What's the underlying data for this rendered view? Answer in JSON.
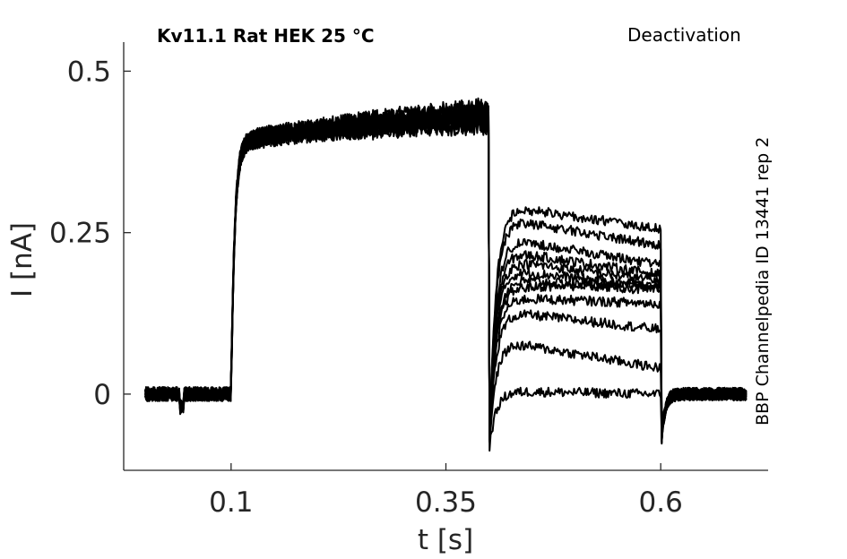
{
  "chart_data": {
    "type": "line",
    "title": "Kv11.1  Rat  HEK  25 °C",
    "subtitle": "Deactivation",
    "side_label": "BBP Channelpedia ID 13441 rep 2",
    "xlabel": "t [s]",
    "ylabel": "I [nA]",
    "xlim": [
      -0.025,
      0.725
    ],
    "ylim": [
      -0.118,
      0.545
    ],
    "xticks": [
      0.1,
      0.35,
      0.6
    ],
    "xtick_labels": [
      "0.1",
      "0.35",
      "0.6"
    ],
    "yticks": [
      0,
      0.25,
      0.5
    ],
    "ytick_labels": [
      "0",
      "0.25",
      "0.5"
    ],
    "grid": false,
    "line_color": "#000000",
    "protocol": {
      "pre_start": 0.0,
      "step_start": 0.1,
      "tail_start": 0.4,
      "tail_end": 0.6,
      "end": 0.7,
      "pre_level": 0.0,
      "activation_level_start": 0.38,
      "activation_level_end": 0.43,
      "post_level": 0.0,
      "tail_dip": -0.09,
      "end_dip": -0.09
    },
    "series": [
      {
        "tail_start": 0.295,
        "tail_end": 0.255
      },
      {
        "tail_start": 0.275,
        "tail_end": 0.23
      },
      {
        "tail_start": 0.245,
        "tail_end": 0.2
      },
      {
        "tail_start": 0.225,
        "tail_end": 0.185
      },
      {
        "tail_start": 0.21,
        "tail_end": 0.175
      },
      {
        "tail_start": 0.195,
        "tail_end": 0.165
      },
      {
        "tail_start": 0.18,
        "tail_end": 0.16
      },
      {
        "tail_start": 0.165,
        "tail_end": 0.17
      },
      {
        "tail_start": 0.15,
        "tail_end": 0.14
      },
      {
        "tail_start": 0.13,
        "tail_end": 0.1
      },
      {
        "tail_start": 0.085,
        "tail_end": 0.04
      },
      {
        "tail_start": 0.005,
        "tail_end": 0.0
      }
    ]
  }
}
